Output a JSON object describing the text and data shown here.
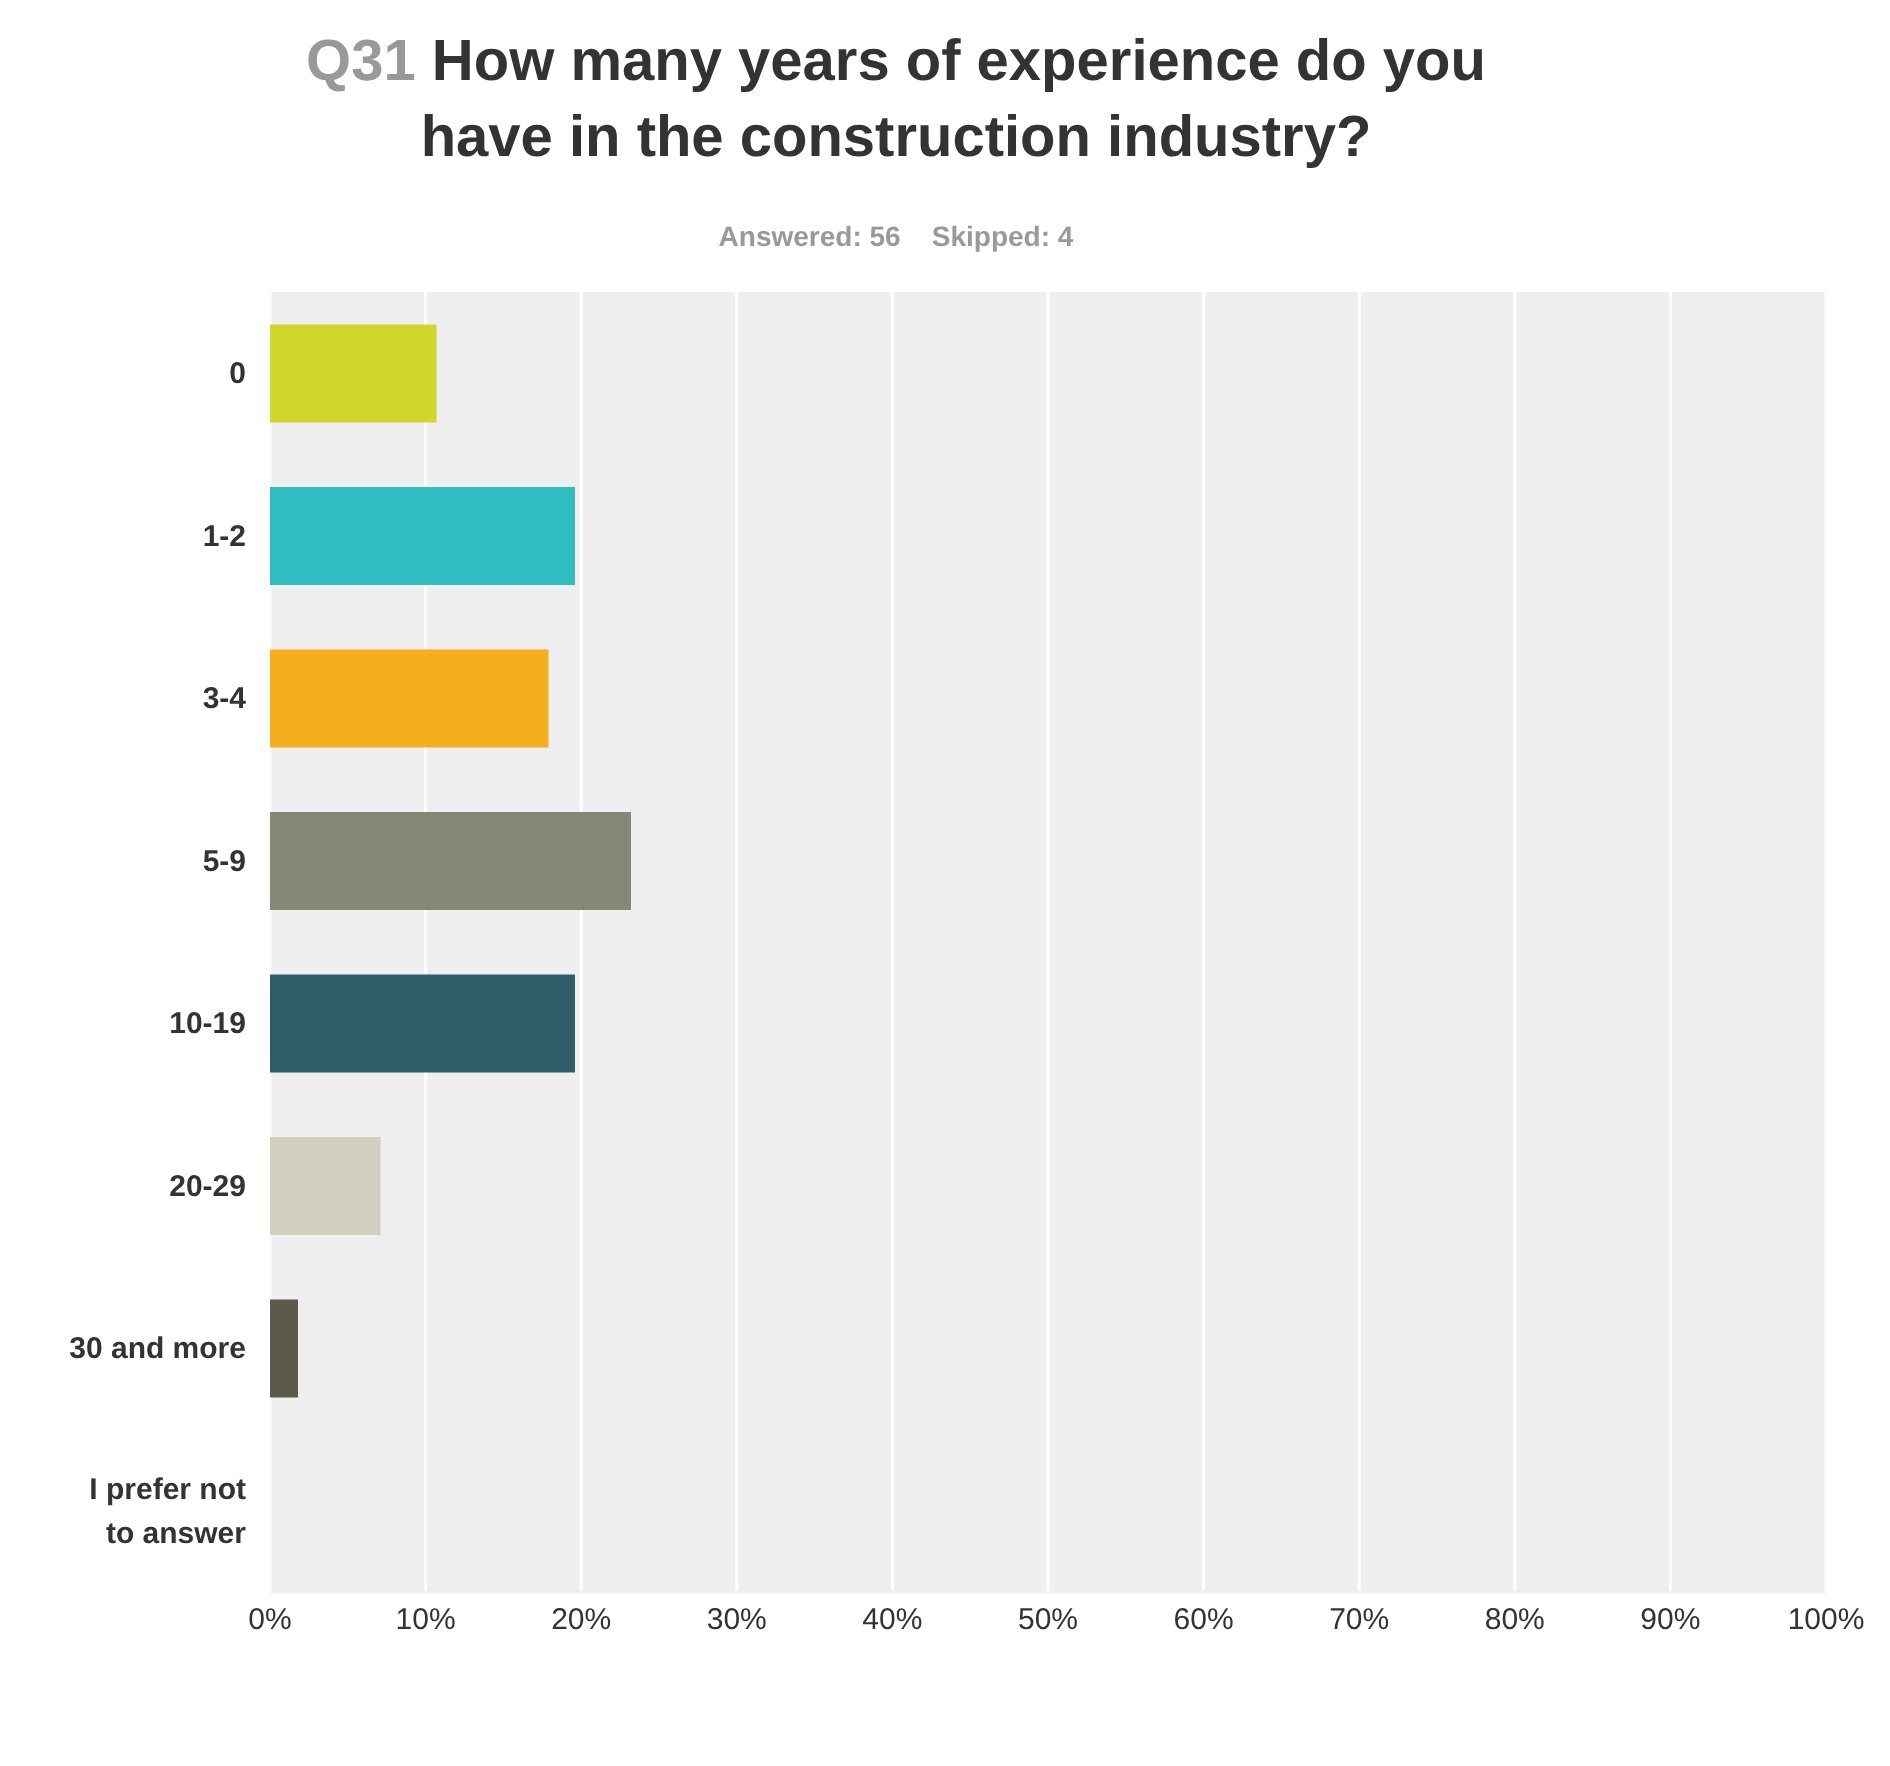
{
  "chart_data": {
    "type": "bar",
    "orientation": "horizontal",
    "title": "Q31 How many years of experience do you have in the construction industry?",
    "subtitle": "Answered: 56    Skipped: 4",
    "categories": [
      "0",
      "1-2",
      "3-4",
      "5-9",
      "10-19",
      "20-29",
      "30 and more",
      "I prefer not to answer"
    ],
    "values": [
      10.7,
      19.6,
      17.9,
      23.2,
      19.6,
      7.1,
      1.8,
      0
    ],
    "colors": [
      "#d0d62a",
      "#31bcbf",
      "#f5ae1f",
      "#878777",
      "#2e5d69",
      "#d1cfbe",
      "#5b5a4b",
      "#9a9a8c"
    ],
    "xlim": [
      0,
      100
    ],
    "xticks": [
      {
        "value": 0,
        "label": "0%"
      },
      {
        "value": 10,
        "label": "10%"
      },
      {
        "value": 20,
        "label": "20%"
      },
      {
        "value": 30,
        "label": "30%"
      },
      {
        "value": 40,
        "label": "40%"
      },
      {
        "value": 50,
        "label": "50%"
      },
      {
        "value": 60,
        "label": "60%"
      },
      {
        "value": 70,
        "label": "70%"
      },
      {
        "value": 80,
        "label": "80%"
      },
      {
        "value": 90,
        "label": "90%"
      },
      {
        "value": 100,
        "label": "100%"
      }
    ],
    "grid": "x"
  }
}
